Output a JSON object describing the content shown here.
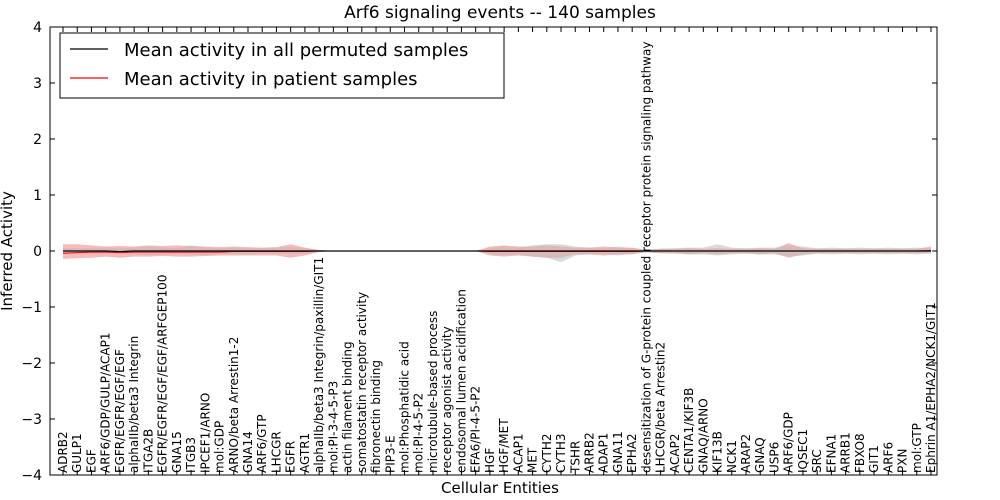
{
  "chart_data": {
    "type": "line",
    "title": "Arf6 signaling events -- 140 samples",
    "xlabel": "Cellular Entities",
    "ylabel": "Inferred Activity",
    "ylim": [
      -4,
      4
    ],
    "yticks": [
      -4,
      -3,
      -2,
      -1,
      0,
      1,
      2,
      3,
      4
    ],
    "grid": false,
    "legend_position": "top-left",
    "categories": [
      "ADRB2",
      "GULP1",
      "EGF",
      "ARF6/GDP/GULP/ACAP1",
      "EGFR/EGFR/EGF/EGF",
      "alphaIIb/beta3 Integrin",
      "ITGA2B",
      "EGFR/EGFR/EGF/EGF/ARFGEP100",
      "GNA15",
      "ITGB3",
      "IPCEF1/ARNO",
      "mol:GDP",
      "ARNO/beta Arrestin1-2",
      "GNA14",
      "ARF6/GTP",
      "LHCGR",
      "EGFR",
      "AGTR1",
      "alphaIIb/beta3 Integrin/paxillin/GIT1",
      "mol:PI-3-4-5-P3",
      "actin filament binding",
      "somatostatin receptor activity",
      "fibronectin binding",
      "PIP3-E",
      "mol:Phosphatidic acid",
      "mol:PI-4-5-P2",
      "microtubule-based process",
      "receptor agonist activity",
      "endosomal lumen acidification",
      "EFA6/PI-4-5-P2",
      "HGF",
      "HGF/MET",
      "ACAP1",
      "MET",
      "CYTH2",
      "CYTH3",
      "TSHR",
      "ARRB2",
      "ADAP1",
      "GNA11",
      "EPHA2",
      "desensitization of G-protein coupled receptor protein signaling pathway",
      "LHCGR/beta Arrestin2",
      "ACAP2",
      "CENTA1/KIF3B",
      "GNAQ/ARNO",
      "KIF13B",
      "NCK1",
      "ARAP2",
      "GNAQ",
      "USP6",
      "ARF6/GDP",
      "IQSEC1",
      "SRC",
      "EFNA1",
      "ARRB1",
      "FBXO8",
      "GIT1",
      "ARF6",
      "PXN",
      "mol:GTP",
      "Ephrin A1/EPHA2/NCK1/GIT1"
    ],
    "series": [
      {
        "name": "Mean activity in all permuted samples",
        "color": "#000000",
        "values": [
          0.0,
          0.0,
          0.0,
          0.0,
          -0.01,
          0.0,
          0.0,
          0.0,
          0.0,
          0.0,
          0.0,
          0.0,
          0.0,
          0.0,
          0.0,
          0.0,
          0.0,
          0.0,
          0.0,
          0.0,
          0.0,
          0.0,
          0.0,
          0.0,
          0.0,
          0.0,
          0.0,
          0.0,
          0.0,
          0.0,
          0.0,
          0.0,
          0.0,
          0.0,
          0.0,
          0.0,
          0.0,
          0.0,
          0.0,
          0.0,
          0.0,
          0.0,
          0.0,
          0.0,
          0.0,
          0.0,
          0.0,
          0.0,
          0.0,
          0.0,
          0.0,
          0.0,
          0.0,
          0.0,
          0.0,
          0.0,
          0.0,
          0.0,
          0.0,
          0.0,
          0.0,
          0.0
        ],
        "band": {
          "color": "#bbbbbb",
          "lower": [
            -0.05,
            -0.05,
            -0.05,
            -0.06,
            -0.05,
            -0.06,
            -0.08,
            -0.06,
            -0.05,
            -0.06,
            -0.08,
            -0.06,
            -0.05,
            -0.06,
            -0.05,
            -0.05,
            -0.06,
            -0.05,
            -0.02,
            0.0,
            0.0,
            0.0,
            0.0,
            0.0,
            0.0,
            0.0,
            0.0,
            0.0,
            0.0,
            0.0,
            -0.05,
            -0.08,
            -0.06,
            -0.1,
            -0.12,
            -0.2,
            -0.08,
            -0.06,
            -0.05,
            -0.08,
            -0.05,
            -0.03,
            -0.04,
            -0.05,
            -0.06,
            -0.06,
            -0.08,
            -0.06,
            -0.05,
            -0.06,
            -0.06,
            -0.1,
            -0.08,
            -0.05,
            -0.06,
            -0.05,
            -0.06,
            -0.05,
            -0.06,
            -0.05,
            -0.06,
            -0.05
          ],
          "upper": [
            0.05,
            0.05,
            0.05,
            0.06,
            0.05,
            0.06,
            0.08,
            0.06,
            0.05,
            0.1,
            0.06,
            0.05,
            0.06,
            0.05,
            0.05,
            0.06,
            0.07,
            0.05,
            0.02,
            0.0,
            0.0,
            0.0,
            0.0,
            0.0,
            0.0,
            0.0,
            0.0,
            0.0,
            0.0,
            0.0,
            0.05,
            0.08,
            0.06,
            0.1,
            0.12,
            0.12,
            0.08,
            0.06,
            0.05,
            0.08,
            0.05,
            0.03,
            0.04,
            0.05,
            0.06,
            0.06,
            0.12,
            0.06,
            0.05,
            0.06,
            0.06,
            0.1,
            0.08,
            0.05,
            0.06,
            0.05,
            0.06,
            0.05,
            0.06,
            0.05,
            0.06,
            0.05
          ]
        }
      },
      {
        "name": "Mean activity in patient samples",
        "color": "#ff0000",
        "values": [
          -0.04,
          -0.03,
          -0.02,
          -0.02,
          -0.03,
          -0.02,
          -0.02,
          -0.02,
          -0.02,
          -0.02,
          -0.02,
          -0.02,
          -0.01,
          -0.01,
          -0.01,
          -0.01,
          -0.01,
          -0.01,
          0.0,
          0.0,
          0.0,
          0.0,
          0.0,
          0.0,
          0.0,
          0.0,
          0.0,
          0.0,
          0.0,
          0.0,
          -0.01,
          -0.01,
          -0.01,
          -0.01,
          -0.01,
          -0.01,
          -0.01,
          -0.01,
          -0.01,
          -0.01,
          -0.01,
          0.0,
          0.0,
          0.0,
          0.0,
          0.0,
          0.0,
          0.0,
          0.0,
          0.0,
          0.0,
          0.0,
          0.0,
          0.0,
          0.0,
          0.0,
          0.0,
          0.0,
          0.0,
          0.0,
          0.0,
          0.01
        ],
        "band": {
          "color": "#f5a3a3",
          "lower": [
            -0.14,
            -0.13,
            -0.12,
            -0.1,
            -0.12,
            -0.1,
            -0.1,
            -0.09,
            -0.1,
            -0.1,
            -0.09,
            -0.08,
            -0.08,
            -0.08,
            -0.08,
            -0.08,
            -0.12,
            -0.08,
            -0.02,
            0.0,
            0.0,
            0.0,
            0.0,
            0.0,
            0.0,
            0.0,
            0.0,
            0.0,
            0.0,
            0.0,
            -0.08,
            -0.1,
            -0.08,
            -0.1,
            -0.12,
            -0.12,
            -0.06,
            -0.06,
            -0.08,
            -0.06,
            -0.06,
            -0.02,
            -0.04,
            -0.04,
            -0.06,
            -0.04,
            -0.06,
            -0.04,
            -0.04,
            -0.06,
            -0.04,
            -0.12,
            -0.06,
            -0.04,
            -0.04,
            -0.04,
            -0.04,
            -0.04,
            -0.04,
            -0.04,
            -0.04,
            -0.03
          ],
          "upper": [
            0.12,
            0.12,
            0.1,
            0.08,
            0.09,
            0.08,
            0.1,
            0.09,
            0.1,
            0.09,
            0.08,
            0.07,
            0.08,
            0.07,
            0.06,
            0.07,
            0.12,
            0.06,
            0.02,
            0.0,
            0.0,
            0.0,
            0.0,
            0.0,
            0.0,
            0.0,
            0.0,
            0.0,
            0.0,
            0.0,
            0.08,
            0.1,
            0.08,
            0.08,
            0.1,
            0.08,
            0.06,
            0.06,
            0.08,
            0.06,
            0.06,
            0.02,
            0.04,
            0.04,
            0.05,
            0.04,
            0.05,
            0.04,
            0.04,
            0.05,
            0.04,
            0.14,
            0.05,
            0.04,
            0.04,
            0.04,
            0.04,
            0.04,
            0.04,
            0.04,
            0.04,
            0.08
          ]
        }
      }
    ]
  }
}
